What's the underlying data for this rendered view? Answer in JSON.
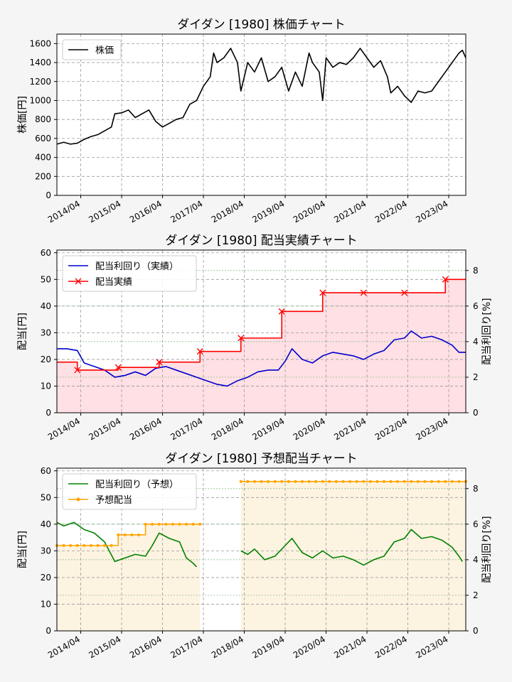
{
  "chart_data": [
    {
      "type": "line",
      "title": "ダイダン [1980]  株価チャート",
      "ylabel": "株価[円]",
      "xlabel": "",
      "x_range": [
        "2013-09",
        "2023-09"
      ],
      "ylim": [
        0,
        1700
      ],
      "yticks": [
        0,
        200,
        400,
        600,
        800,
        1000,
        1200,
        1400,
        1600
      ],
      "xticks": [
        "2014/04",
        "2015/04",
        "2016/04",
        "2017/04",
        "2018/04",
        "2019/04",
        "2020/04",
        "2021/04",
        "2022/04",
        "2023/04"
      ],
      "grid": true,
      "legend_position": "top-left",
      "series": [
        {
          "name": "株価",
          "color": "#000000",
          "points": [
            [
              "2013-09",
              540
            ],
            [
              "2013-11",
              560
            ],
            [
              "2014-01",
              540
            ],
            [
              "2014-03",
              550
            ],
            [
              "2014-05",
              590
            ],
            [
              "2014-07",
              620
            ],
            [
              "2014-09",
              640
            ],
            [
              "2014-11",
              680
            ],
            [
              "2015-01",
              720
            ],
            [
              "2015-02",
              860
            ],
            [
              "2015-04",
              870
            ],
            [
              "2015-06",
              900
            ],
            [
              "2015-08",
              820
            ],
            [
              "2015-10",
              860
            ],
            [
              "2015-12",
              900
            ],
            [
              "2016-02",
              780
            ],
            [
              "2016-04",
              720
            ],
            [
              "2016-06",
              760
            ],
            [
              "2016-08",
              800
            ],
            [
              "2016-10",
              820
            ],
            [
              "2016-12",
              960
            ],
            [
              "2017-02",
              1000
            ],
            [
              "2017-04",
              1150
            ],
            [
              "2017-06",
              1250
            ],
            [
              "2017-07",
              1500
            ],
            [
              "2017-08",
              1400
            ],
            [
              "2017-10",
              1450
            ],
            [
              "2017-12",
              1550
            ],
            [
              "2018-02",
              1400
            ],
            [
              "2018-03",
              1100
            ],
            [
              "2018-05",
              1400
            ],
            [
              "2018-07",
              1300
            ],
            [
              "2018-09",
              1450
            ],
            [
              "2018-11",
              1200
            ],
            [
              "2019-01",
              1250
            ],
            [
              "2019-03",
              1350
            ],
            [
              "2019-05",
              1100
            ],
            [
              "2019-07",
              1300
            ],
            [
              "2019-09",
              1150
            ],
            [
              "2019-11",
              1500
            ],
            [
              "2019-12",
              1400
            ],
            [
              "2020-02",
              1300
            ],
            [
              "2020-03",
              1000
            ],
            [
              "2020-04",
              1450
            ],
            [
              "2020-06",
              1350
            ],
            [
              "2020-08",
              1400
            ],
            [
              "2020-10",
              1380
            ],
            [
              "2020-12",
              1450
            ],
            [
              "2021-02",
              1550
            ],
            [
              "2021-04",
              1450
            ],
            [
              "2021-06",
              1350
            ],
            [
              "2021-08",
              1420
            ],
            [
              "2021-10",
              1250
            ],
            [
              "2021-11",
              1080
            ],
            [
              "2022-01",
              1150
            ],
            [
              "2022-03",
              1050
            ],
            [
              "2022-05",
              980
            ],
            [
              "2022-07",
              1100
            ],
            [
              "2022-09",
              1080
            ],
            [
              "2022-11",
              1100
            ],
            [
              "2023-01",
              1200
            ],
            [
              "2023-03",
              1300
            ],
            [
              "2023-05",
              1400
            ],
            [
              "2023-07",
              1500
            ],
            [
              "2023-08",
              1530
            ],
            [
              "2023-09",
              1450
            ]
          ]
        }
      ]
    },
    {
      "type": "line",
      "title": "ダイダン [1980]  配当実績チャート",
      "ylabel": "配当[円]",
      "y2label": "配当利回り[%]",
      "x_range": [
        "2013-09",
        "2023-09"
      ],
      "ylim": [
        0,
        61
      ],
      "y2lim": [
        0,
        9.15
      ],
      "yticks": [
        0,
        10,
        20,
        30,
        40,
        50,
        60
      ],
      "y2ticks": [
        0,
        2,
        4,
        6,
        8
      ],
      "xticks": [
        "2014/04",
        "2015/04",
        "2016/04",
        "2017/04",
        "2018/04",
        "2019/04",
        "2020/04",
        "2021/04",
        "2022/04",
        "2023/04"
      ],
      "grid": true,
      "legend_position": "top-left",
      "series": [
        {
          "name": "配当利回り（実績）",
          "axis": "right",
          "color": "#0000cc",
          "points": [
            [
              "2013-09",
              3.6
            ],
            [
              "2013-12",
              3.6
            ],
            [
              "2014-03",
              3.5
            ],
            [
              "2014-05",
              2.8
            ],
            [
              "2014-08",
              2.6
            ],
            [
              "2014-11",
              2.4
            ],
            [
              "2015-02",
              2.0
            ],
            [
              "2015-05",
              2.1
            ],
            [
              "2015-08",
              2.3
            ],
            [
              "2015-11",
              2.1
            ],
            [
              "2016-02",
              2.5
            ],
            [
              "2016-05",
              2.6
            ],
            [
              "2016-08",
              2.4
            ],
            [
              "2016-11",
              2.2
            ],
            [
              "2017-02",
              2.0
            ],
            [
              "2017-05",
              1.8
            ],
            [
              "2017-08",
              1.6
            ],
            [
              "2017-11",
              1.5
            ],
            [
              "2018-02",
              1.8
            ],
            [
              "2018-05",
              2.0
            ],
            [
              "2018-08",
              2.3
            ],
            [
              "2018-11",
              2.4
            ],
            [
              "2019-02",
              2.4
            ],
            [
              "2019-04",
              2.9
            ],
            [
              "2019-06",
              3.6
            ],
            [
              "2019-09",
              3.0
            ],
            [
              "2019-12",
              2.8
            ],
            [
              "2020-03",
              3.2
            ],
            [
              "2020-06",
              3.4
            ],
            [
              "2020-09",
              3.3
            ],
            [
              "2020-12",
              3.2
            ],
            [
              "2021-03",
              3.0
            ],
            [
              "2021-06",
              3.3
            ],
            [
              "2021-09",
              3.5
            ],
            [
              "2021-12",
              4.1
            ],
            [
              "2022-03",
              4.2
            ],
            [
              "2022-05",
              4.6
            ],
            [
              "2022-08",
              4.2
            ],
            [
              "2022-11",
              4.3
            ],
            [
              "2023-02",
              4.1
            ],
            [
              "2023-05",
              3.8
            ],
            [
              "2023-07",
              3.4
            ],
            [
              "2023-09",
              3.4
            ]
          ]
        },
        {
          "name": "配当実績",
          "axis": "left",
          "color": "#ff0000",
          "step": true,
          "points": [
            [
              "2013-09",
              19
            ],
            [
              "2014-03",
              16
            ],
            [
              "2015-03",
              17
            ],
            [
              "2016-03",
              19
            ],
            [
              "2017-03",
              23
            ],
            [
              "2018-03",
              28
            ],
            [
              "2019-03",
              38
            ],
            [
              "2020-03",
              45
            ],
            [
              "2021-03",
              45
            ],
            [
              "2022-03",
              45
            ],
            [
              "2023-03",
              50
            ],
            [
              "2023-09",
              50
            ]
          ],
          "markers": [
            [
              "2014-03",
              16
            ],
            [
              "2015-03",
              17
            ],
            [
              "2016-03",
              19
            ],
            [
              "2017-03",
              23
            ],
            [
              "2018-03",
              28
            ],
            [
              "2019-03",
              38
            ],
            [
              "2020-03",
              45
            ],
            [
              "2021-03",
              45
            ],
            [
              "2022-03",
              45
            ],
            [
              "2023-03",
              50
            ]
          ]
        }
      ]
    },
    {
      "type": "line",
      "title": "ダイダン [1980]  予想配当チャート",
      "ylabel": "配当[円]",
      "y2label": "配当利回り[%]",
      "x_range": [
        "2013-09",
        "2023-09"
      ],
      "ylim": [
        0,
        61
      ],
      "y2lim": [
        0,
        9.15
      ],
      "yticks": [
        0,
        10,
        20,
        30,
        40,
        50,
        60
      ],
      "y2ticks": [
        0,
        2,
        4,
        6,
        8
      ],
      "xticks": [
        "2014/04",
        "2015/04",
        "2016/04",
        "2017/04",
        "2018/04",
        "2019/04",
        "2020/04",
        "2021/04",
        "2022/04",
        "2023/04"
      ],
      "grid": true,
      "legend_position": "top-left",
      "series": [
        {
          "name": "配当利回り（予想）",
          "axis": "right",
          "color": "#008000",
          "segments": [
            [
              [
                "2013-09",
                6.1
              ],
              [
                "2013-11",
                5.9
              ],
              [
                "2014-02",
                6.1
              ],
              [
                "2014-05",
                5.7
              ],
              [
                "2014-08",
                5.5
              ],
              [
                "2014-11",
                5.0
              ],
              [
                "2015-02",
                3.9
              ],
              [
                "2015-05",
                4.1
              ],
              [
                "2015-08",
                4.3
              ],
              [
                "2015-11",
                4.2
              ],
              [
                "2016-01",
                4.8
              ],
              [
                "2016-03",
                5.5
              ],
              [
                "2016-06",
                5.2
              ],
              [
                "2016-09",
                5.0
              ],
              [
                "2016-11",
                4.1
              ],
              [
                "2017-01",
                3.8
              ],
              [
                "2017-02",
                3.6
              ]
            ],
            [
              [
                "2018-03",
                4.5
              ],
              [
                "2018-05",
                4.3
              ],
              [
                "2018-07",
                4.6
              ],
              [
                "2018-10",
                4.0
              ],
              [
                "2019-01",
                4.2
              ],
              [
                "2019-04",
                4.8
              ],
              [
                "2019-06",
                5.2
              ],
              [
                "2019-09",
                4.4
              ],
              [
                "2019-12",
                4.1
              ],
              [
                "2020-03",
                4.5
              ],
              [
                "2020-06",
                4.1
              ],
              [
                "2020-09",
                4.2
              ],
              [
                "2020-12",
                4.0
              ],
              [
                "2021-03",
                3.7
              ],
              [
                "2021-06",
                4.0
              ],
              [
                "2021-09",
                4.2
              ],
              [
                "2021-12",
                5.0
              ],
              [
                "2022-03",
                5.2
              ],
              [
                "2022-05",
                5.7
              ],
              [
                "2022-08",
                5.2
              ],
              [
                "2022-11",
                5.3
              ],
              [
                "2023-02",
                5.1
              ],
              [
                "2023-05",
                4.7
              ],
              [
                "2023-07",
                4.2
              ],
              [
                "2023-08",
                3.9
              ]
            ]
          ]
        },
        {
          "name": "予想配当",
          "axis": "left",
          "color": "#ffa500",
          "step": true,
          "segments": [
            [
              [
                "2013-09",
                32
              ],
              [
                "2015-03",
                32
              ],
              [
                "2015-03",
                36
              ],
              [
                "2015-11",
                36
              ],
              [
                "2015-11",
                40
              ],
              [
                "2017-03",
                40
              ]
            ],
            [
              [
                "2018-03",
                56
              ],
              [
                "2023-09",
                56
              ]
            ]
          ]
        }
      ]
    }
  ]
}
